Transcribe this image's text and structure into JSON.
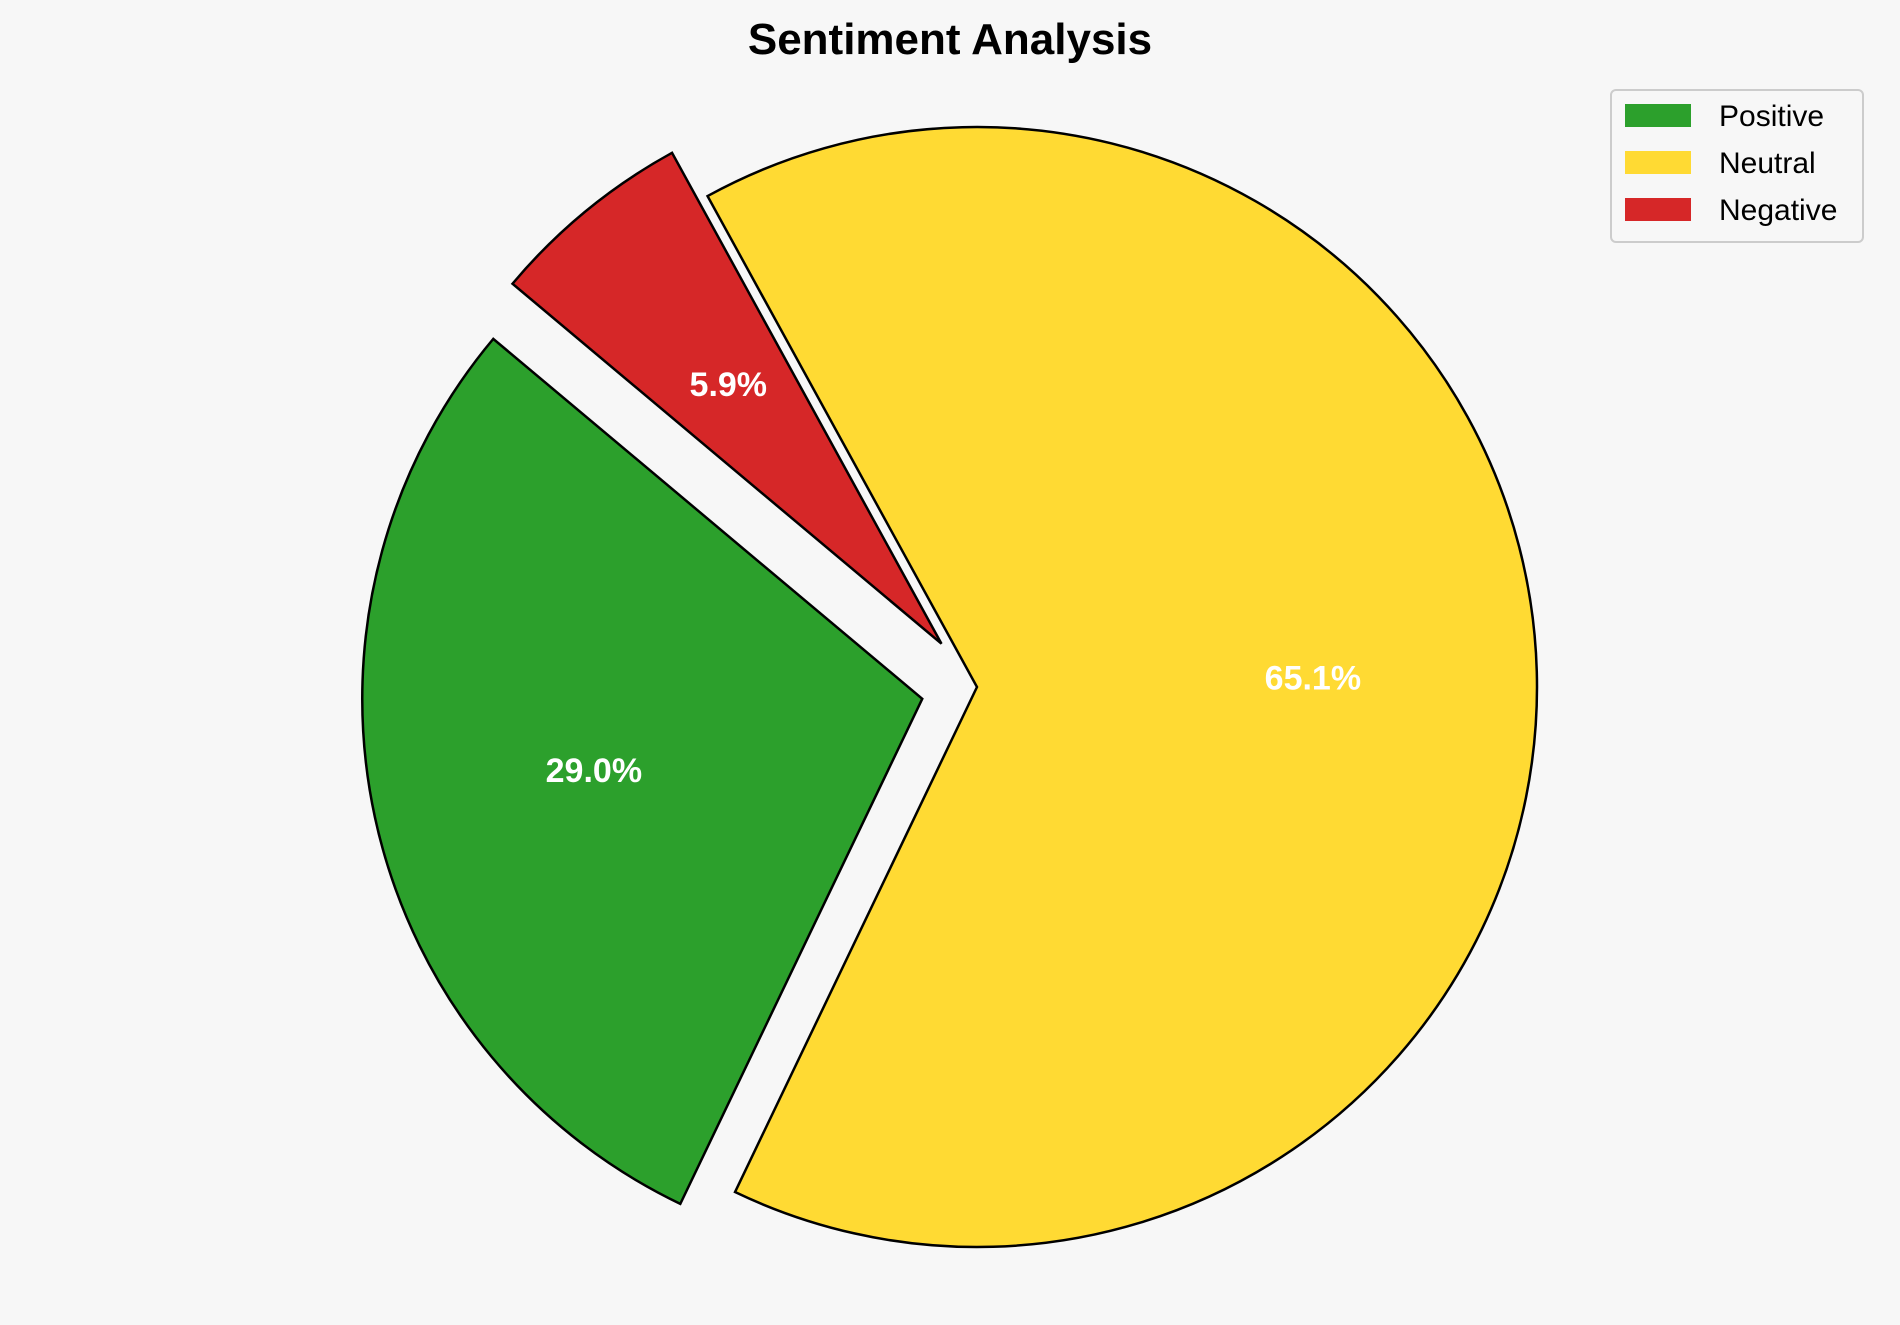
{
  "chart_data": {
    "type": "pie",
    "title": "Sentiment Analysis",
    "categories": [
      "Positive",
      "Neutral",
      "Negative"
    ],
    "values": [
      29.0,
      65.1,
      5.9
    ],
    "labels": [
      "29.0%",
      "65.1%",
      "5.9%"
    ],
    "colors": [
      "#2ca02c",
      "#ffda33",
      "#d62728"
    ],
    "explode": [
      0.1,
      0,
      0.1
    ],
    "start_angle": 140,
    "legend_placement": "top-right",
    "edge_color": "#000000"
  }
}
